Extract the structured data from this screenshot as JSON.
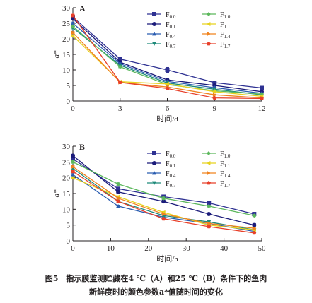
{
  "chart_data": [
    {
      "type": "line",
      "panel_label": "A",
      "xlabel": "时间/d",
      "ylabel": "a*",
      "xlim": [
        0,
        12
      ],
      "ylim": [
        0,
        30
      ],
      "x_ticks": [
        0,
        3,
        6,
        9,
        12
      ],
      "y_ticks": [
        0,
        5,
        10,
        15,
        20,
        25,
        30
      ],
      "legend_placement": "top-right",
      "x": [
        0,
        3,
        6,
        9,
        12
      ],
      "series": [
        {
          "name": "F0.0",
          "base": "F",
          "sub": "0.0",
          "color": "#2e3192",
          "marker": "square",
          "values": [
            27.0,
            13.5,
            10.0,
            5.9,
            4.2
          ],
          "errors": [
            0.5,
            0.5,
            0.8,
            0.4,
            0.3
          ]
        },
        {
          "name": "F0.1",
          "base": "F",
          "sub": "0.1",
          "color": "#1b1b7a",
          "marker": "circle",
          "values": [
            26.5,
            12.5,
            6.8,
            5.0,
            3.0
          ],
          "errors": [
            0.4,
            0.4,
            0.3,
            0.3,
            0.2
          ]
        },
        {
          "name": "F0.4",
          "base": "F",
          "sub": "0.4",
          "color": "#2a5db0",
          "marker": "triangle",
          "values": [
            25.0,
            12.0,
            6.3,
            4.3,
            2.5
          ],
          "errors": [
            0.4,
            0.3,
            0.3,
            0.3,
            0.2
          ]
        },
        {
          "name": "F0.7",
          "base": "F",
          "sub": "0.7",
          "color": "#1f8a7a",
          "marker": "tri-down",
          "values": [
            23.5,
            11.5,
            5.8,
            3.8,
            2.0
          ],
          "errors": [
            0.3,
            0.3,
            0.3,
            0.2,
            0.2
          ]
        },
        {
          "name": "F1.0",
          "base": "F",
          "sub": "1.0",
          "color": "#5cb85c",
          "marker": "diamond",
          "values": [
            24.0,
            11.0,
            5.3,
            3.3,
            2.2
          ],
          "errors": [
            0.3,
            0.3,
            0.3,
            0.2,
            0.2
          ]
        },
        {
          "name": "F1.1",
          "base": "F",
          "sub": "1.1",
          "color": "#e6d21e",
          "marker": "tri-left",
          "values": [
            21.0,
            6.2,
            5.5,
            3.0,
            1.5
          ],
          "errors": [
            0.3,
            0.3,
            0.3,
            0.2,
            0.2
          ]
        },
        {
          "name": "F1.4",
          "base": "F",
          "sub": "1.4",
          "color": "#f0831f",
          "marker": "tri-right",
          "values": [
            22.0,
            6.0,
            4.5,
            2.0,
            1.0
          ],
          "errors": [
            0.3,
            0.3,
            0.3,
            0.2,
            0.2
          ]
        },
        {
          "name": "F1.7",
          "base": "F",
          "sub": "1.7",
          "color": "#e8402a",
          "marker": "pentagon",
          "values": [
            27.5,
            6.0,
            4.0,
            1.0,
            0.8
          ],
          "errors": [
            0.4,
            0.3,
            0.3,
            0.2,
            0.2
          ]
        }
      ]
    },
    {
      "type": "line",
      "panel_label": "B",
      "xlabel": "时间/h",
      "ylabel": "a*",
      "xlim": [
        0,
        50
      ],
      "ylim": [
        0,
        30
      ],
      "x_ticks": [
        0,
        10,
        20,
        30,
        40,
        50
      ],
      "y_ticks": [
        0,
        5,
        10,
        15,
        20,
        25,
        30
      ],
      "legend_placement": "top-right",
      "x": [
        0,
        12,
        24,
        36,
        48
      ],
      "series": [
        {
          "name": "F0.0",
          "base": "F",
          "sub": "0.0",
          "color": "#2e3192",
          "marker": "square",
          "values": [
            26.0,
            16.5,
            14.0,
            12.0,
            8.5
          ],
          "errors": [
            0.4,
            0.4,
            0.4,
            0.3,
            0.3
          ]
        },
        {
          "name": "F0.1",
          "base": "F",
          "sub": "0.1",
          "color": "#1b1b7a",
          "marker": "circle",
          "values": [
            27.0,
            15.5,
            12.5,
            8.5,
            5.0
          ],
          "errors": [
            0.4,
            0.4,
            0.4,
            0.3,
            0.5
          ]
        },
        {
          "name": "F0.4",
          "base": "F",
          "sub": "0.4",
          "color": "#2a5db0",
          "marker": "triangle",
          "values": [
            21.0,
            11.0,
            7.5,
            5.5,
            3.0
          ],
          "errors": [
            0.3,
            0.3,
            0.3,
            0.3,
            0.3
          ]
        },
        {
          "name": "F0.7",
          "base": "F",
          "sub": "0.7",
          "color": "#1f8a7a",
          "marker": "tri-down",
          "values": [
            23.0,
            12.5,
            8.0,
            6.0,
            3.5
          ],
          "errors": [
            0.3,
            0.3,
            0.3,
            0.3,
            0.3
          ]
        },
        {
          "name": "F1.0",
          "base": "F",
          "sub": "1.0",
          "color": "#5cb85c",
          "marker": "diamond",
          "values": [
            25.0,
            18.0,
            13.5,
            11.0,
            8.0
          ],
          "errors": [
            0.4,
            0.4,
            0.4,
            0.3,
            0.3
          ]
        },
        {
          "name": "F1.1",
          "base": "F",
          "sub": "1.1",
          "color": "#e6d21e",
          "marker": "tri-left",
          "values": [
            20.0,
            14.0,
            9.0,
            5.0,
            3.5
          ],
          "errors": [
            0.3,
            0.3,
            0.3,
            0.3,
            0.3
          ]
        },
        {
          "name": "F1.4",
          "base": "F",
          "sub": "1.4",
          "color": "#f0831f",
          "marker": "tri-right",
          "values": [
            23.5,
            13.5,
            8.5,
            5.5,
            4.0
          ],
          "errors": [
            0.3,
            0.3,
            0.3,
            0.3,
            0.3
          ]
        },
        {
          "name": "F1.7",
          "base": "F",
          "sub": "1.7",
          "color": "#e8402a",
          "marker": "pentagon",
          "values": [
            22.0,
            12.5,
            7.0,
            4.5,
            2.5
          ],
          "errors": [
            0.3,
            0.3,
            0.3,
            0.3,
            0.3
          ]
        }
      ]
    }
  ],
  "caption": {
    "line1": "图5　指示膜监测贮藏在4 ℃（A）和25 ℃（B）条件下的鱼肉",
    "line2": "新鲜度时的颜色参数a*值随时间的变化"
  }
}
